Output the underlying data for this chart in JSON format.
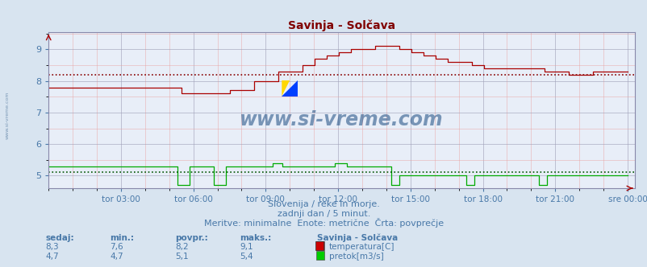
{
  "title": "Savinja - Solčava",
  "bg_color": "#d8e4f0",
  "plot_bg_color": "#e8eef8",
  "xlabel_color": "#4878a8",
  "title_color": "#800000",
  "subtitle_lines": [
    "Slovenija / reke in morje.",
    "zadnji dan / 5 minut.",
    "Meritve: minimalne  Enote: metrične  Črta: povprečje"
  ],
  "xticklabels": [
    "tor 03:00",
    "tor 06:00",
    "tor 09:00",
    "tor 12:00",
    "tor 15:00",
    "tor 18:00",
    "tor 21:00",
    "sre 00:00"
  ],
  "temp_avg": 8.2,
  "flow_avg": 5.1,
  "temp_color": "#aa0000",
  "flow_color": "#00aa00",
  "avg_line_color_temp": "#880000",
  "avg_line_color_flow": "#005500",
  "watermark_text": "www.si-vreme.com",
  "watermark_color": "#1a4a80",
  "table_headers": [
    "sedaj:",
    "min.:",
    "povpr.:",
    "maks.:"
  ],
  "table_row1": [
    "8,3",
    "7,6",
    "8,2",
    "9,1"
  ],
  "table_row2": [
    "4,7",
    "4,7",
    "5,1",
    "5,4"
  ],
  "legend_title": "Savinja - Solčava",
  "legend_items": [
    "temperatura[C]",
    "pretok[m3/s]"
  ],
  "legend_colors": [
    "#cc0000",
    "#00cc00"
  ]
}
